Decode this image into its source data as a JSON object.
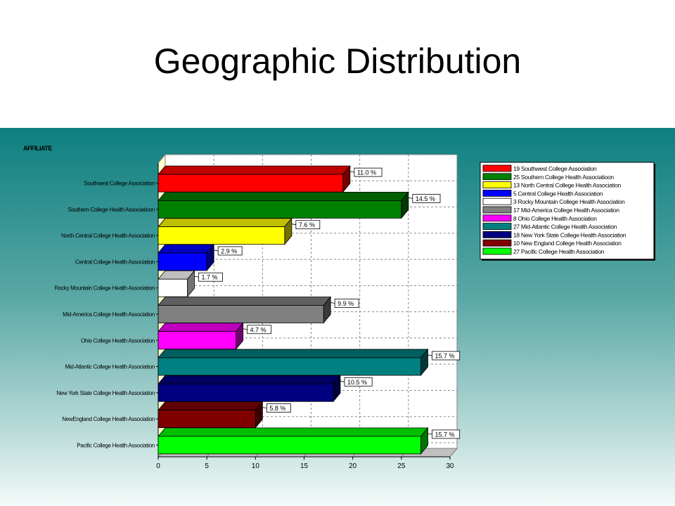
{
  "slide": {
    "title": "Geographic Distribution"
  },
  "chart_data": {
    "type": "bar",
    "orientation": "horizontal",
    "three_d": true,
    "title": "AFFILIATE",
    "categories": [
      "Southwest College Association",
      "Southern College Health Associatioon",
      "North Central College Health Association",
      "Central College Health  Association",
      "Rocky Mountain College Health Association",
      "Mid-America College Health Association",
      "Ohio College Health Association",
      "Mid-Atlantic College Health Association",
      "New York State College Health Association",
      "NewEngland College Health Association",
      "Pacific College Health Association"
    ],
    "values": [
      19,
      25,
      13,
      5,
      3,
      17,
      8,
      27,
      18,
      10,
      27
    ],
    "data_labels": [
      "11.0 %",
      "14.5 %",
      "7.6 %",
      "2.9 %",
      "1.7 %",
      "9.9 %",
      "4.7 %",
      "15.7 %",
      "10.5 %",
      "5.8 %",
      "15.7 %"
    ],
    "colors": [
      "#ff0000",
      "#008000",
      "#ffff00",
      "#0000ff",
      "#ffffff",
      "#808080",
      "#ff00ff",
      "#008080",
      "#000080",
      "#800000",
      "#00ff00"
    ],
    "xlim": [
      0,
      30
    ],
    "xticks": [
      "0",
      "5",
      "10",
      "15",
      "20",
      "25",
      "30"
    ],
    "grid": true,
    "legend_position": "right",
    "legend": [
      "19 Southwest College Association",
      "25 Southern College Health Associatioon",
      "13 North Central College Health Association",
      "5 Central College Health Association",
      "3 Rocky Mountain College Health Association",
      "17 Mid-America College Health Association",
      "8 Ohio College Health Association",
      "27 Mid-Atlantic College Health Association",
      "18 New York State College Health Association",
      "10 New England College Health Association",
      "27 Pacific College Health Association"
    ],
    "xlabel": "",
    "ylabel": ""
  }
}
